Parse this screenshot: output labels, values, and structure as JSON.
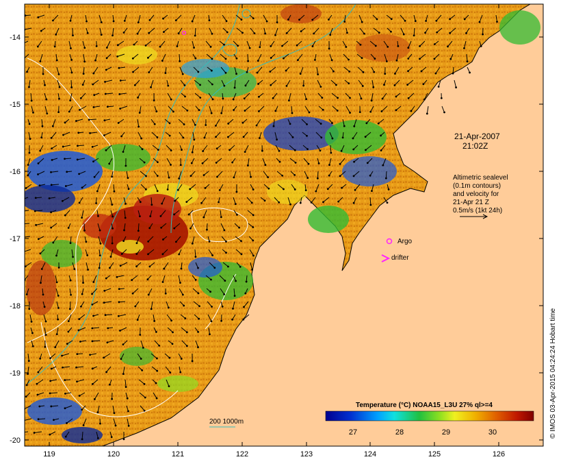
{
  "map": {
    "date_line1": "21-Apr-2007",
    "date_line2": "21:02Z",
    "legend_lines": [
      "Altimetric sealevel",
      "(0.1m contours)",
      "and velocity for",
      "21-Apr 21 Z",
      "0.5m/s (1kt 24h)"
    ],
    "argo_label": "Argo",
    "drifter_label": "drifter",
    "depth_label": "200  1000m",
    "colorbar_title": "Temperature (°C) NOAA15_L3U 27% ql>=4",
    "colorbar_ticks": [
      "27",
      "28",
      "29",
      "30"
    ],
    "credit": "© IMOS 03-Apr-2015 04:24:24 Hobart time",
    "x_ticks": [
      "119",
      "120",
      "121",
      "122",
      "123",
      "124",
      "125",
      "126"
    ],
    "y_ticks": [
      "-14",
      "-15",
      "-16",
      "-17",
      "-18",
      "-19",
      "-20"
    ],
    "colors": {
      "land": "#ffcc99",
      "sea_warm": "#e39a16",
      "sea_hot": "#a61500",
      "sea_cool_green": "#33bb33",
      "sea_cold_blue": "#0b2a9a",
      "contour_cyan": "#33bbbb",
      "argo_magenta": "#ff22ff"
    }
  }
}
